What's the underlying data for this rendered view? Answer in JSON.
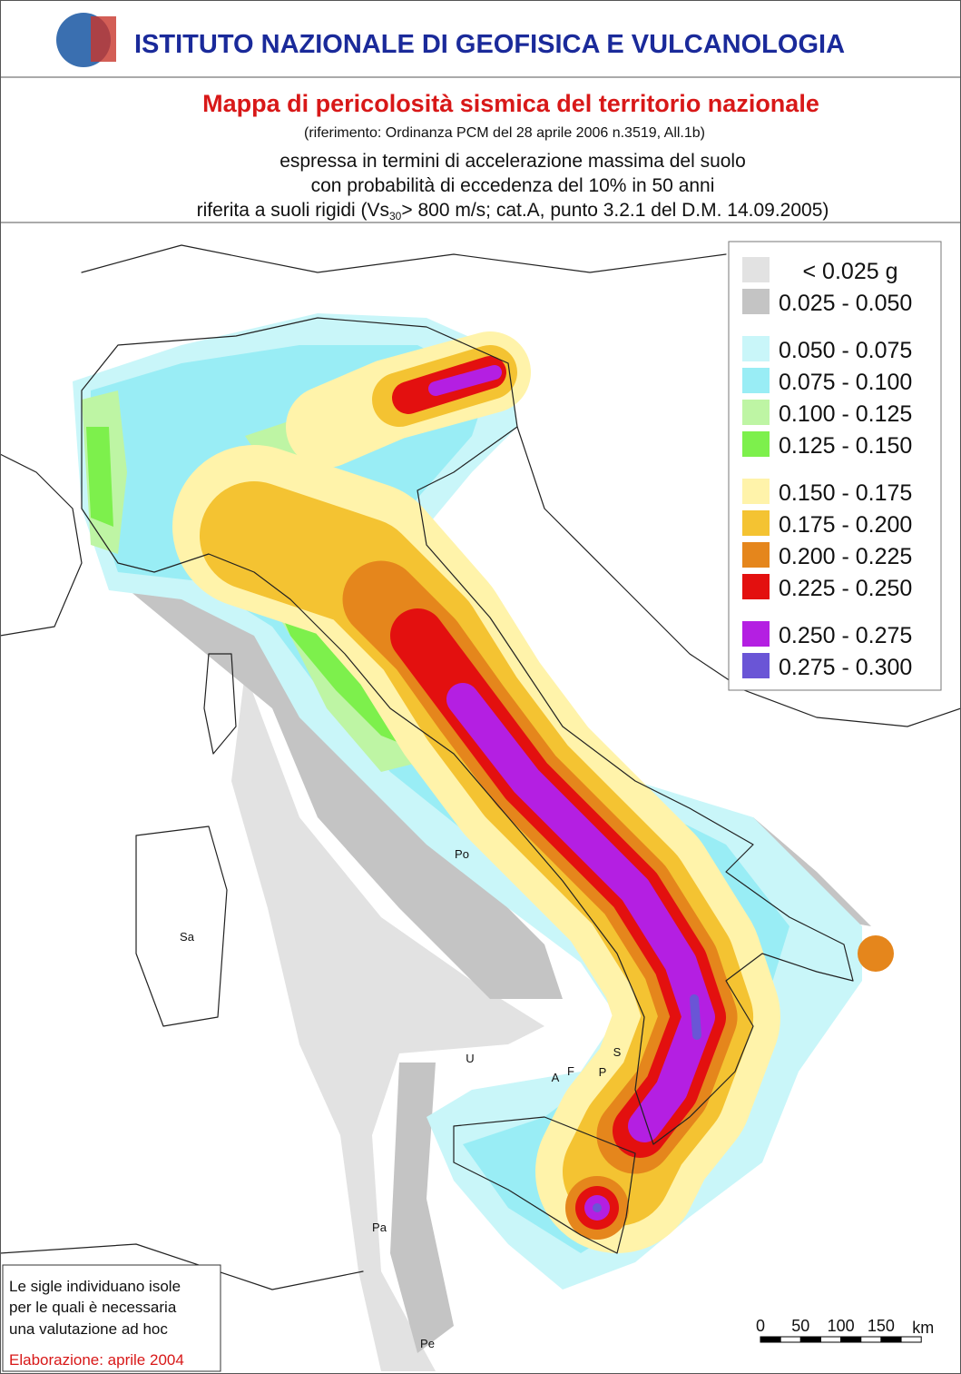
{
  "header": {
    "institute": "ISTITUTO NAZIONALE DI GEOFISICA E VULCANOLOGIA",
    "title": "Mappa di pericolosità sismica del territorio nazionale",
    "reference": "(riferimento: Ordinanza PCM del 28 aprile 2006 n.3519, All.1b)",
    "lines": [
      "espressa in termini di accelerazione massima del suolo",
      "con probabilità di eccedenza del 10% in 50 anni"
    ],
    "last_line": {
      "before": "riferita a suoli rigidi (Vs",
      "subscript": "30",
      "after": "> 800 m/s; cat.A, punto 3.2.1 del D.M. 14.09.2005)"
    }
  },
  "legend": {
    "groups": [
      [
        {
          "label": "< 0.025 g",
          "color": "#e2e2e2"
        },
        {
          "label": "0.025 - 0.050",
          "color": "#c4c4c4"
        }
      ],
      [
        {
          "label": "0.050 - 0.075",
          "color": "#c9f6f9"
        },
        {
          "label": "0.075 - 0.100",
          "color": "#99edf5"
        },
        {
          "label": "0.100 - 0.125",
          "color": "#bef5a4"
        },
        {
          "label": "0.125 - 0.150",
          "color": "#7df04c"
        }
      ],
      [
        {
          "label": "0.150 - 0.175",
          "color": "#fff3aa"
        },
        {
          "label": "0.175 - 0.200",
          "color": "#f4c332"
        },
        {
          "label": "0.200 - 0.225",
          "color": "#e5861c"
        },
        {
          "label": "0.225 - 0.250",
          "color": "#e3100f"
        }
      ],
      [
        {
          "label": "0.250 - 0.275",
          "color": "#b41fe2"
        },
        {
          "label": "0.275 - 0.300",
          "color": "#6a55d6"
        }
      ]
    ]
  },
  "map": {
    "labels": [
      "Sa",
      "Po",
      "U",
      "S",
      "A",
      "F",
      "P",
      "Pa",
      "Pe"
    ]
  },
  "note": {
    "lines": [
      "Le sigle individuano isole",
      "per le quali è necessaria",
      "una valutazione ad hoc"
    ],
    "date": "Elaborazione: aprile 2004"
  },
  "scale": {
    "ticks": [
      0,
      50,
      100,
      150
    ],
    "unit": "km"
  }
}
